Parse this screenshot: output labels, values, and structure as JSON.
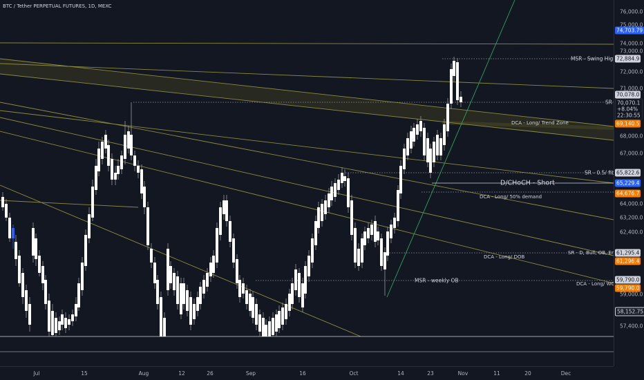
{
  "chart_title": "BTC / Tether PERPETUAL FUTURES, 1D, MEXC",
  "colors": {
    "background": "#131722",
    "bull": "#2962ff",
    "bear": "#ffffff",
    "trendline": "#8d8a3a",
    "zone": "#3a3a20",
    "green_line": "#26a65b"
  },
  "y_ticks": [
    "76,000.0",
    "75,000.0",
    "74,000.0",
    "73,000.0",
    "72,000.0",
    "71,000.0",
    "68,000.0",
    "67,000.0",
    "64,000.0",
    "63,200.0",
    "62,400.0",
    "59,000.0",
    "57,400.0"
  ],
  "price_tags": [
    {
      "id": "t1",
      "text": "74,703.79",
      "style": "blue"
    },
    {
      "id": "t2",
      "text": "72,884.9",
      "style": "grey"
    },
    {
      "id": "t3",
      "text": "70,078.0",
      "style": "grey"
    },
    {
      "id": "t4",
      "lines": [
        "70,070.1",
        "+8.04%",
        "22:30:55"
      ],
      "style": "multi"
    },
    {
      "id": "t5",
      "text": "69,140.5",
      "style": "orange"
    },
    {
      "id": "t6",
      "text": "65,822.6",
      "style": "grey"
    },
    {
      "id": "t7",
      "text": "65,229.4",
      "style": "blue"
    },
    {
      "id": "t8",
      "text": "64,676.7",
      "style": "orange"
    },
    {
      "id": "t9",
      "text": "61,295.4",
      "style": "grey"
    },
    {
      "id": "t10",
      "text": "61,296.4",
      "style": "orange"
    },
    {
      "id": "t11",
      "text": "59,790.0",
      "style": "grey"
    },
    {
      "id": "t12",
      "text": "59,790.0",
      "style": "orange"
    },
    {
      "id": "t13",
      "text": "58,152.75",
      "style": "blue"
    }
  ],
  "x_ticks": [
    "Jul",
    "15",
    "Aug",
    "12",
    "26",
    "Sep",
    "16",
    "Oct",
    "14",
    "23",
    "Nov",
    "11",
    "20",
    "Dec"
  ],
  "annotations": [
    {
      "id": "a1",
      "text": "MSR - Swing High"
    },
    {
      "id": "a2",
      "text": "SR"
    },
    {
      "id": "a3",
      "text": "DCA - Long/ Trend Zone"
    },
    {
      "id": "a4",
      "text": "SR - 0.5/ fib"
    },
    {
      "id": "a5",
      "text": "D/CHoCH - Short"
    },
    {
      "id": "a6",
      "text": "DCA - Long/ 50% demand"
    },
    {
      "id": "a7",
      "text": "SR - D, Bull, OB, Entry"
    },
    {
      "id": "a8",
      "text": "DCA - Long/ DOB"
    },
    {
      "id": "a9",
      "text": "MSR - weekly OB"
    },
    {
      "id": "a10",
      "text": "DCA - Long/ WOB"
    }
  ]
}
